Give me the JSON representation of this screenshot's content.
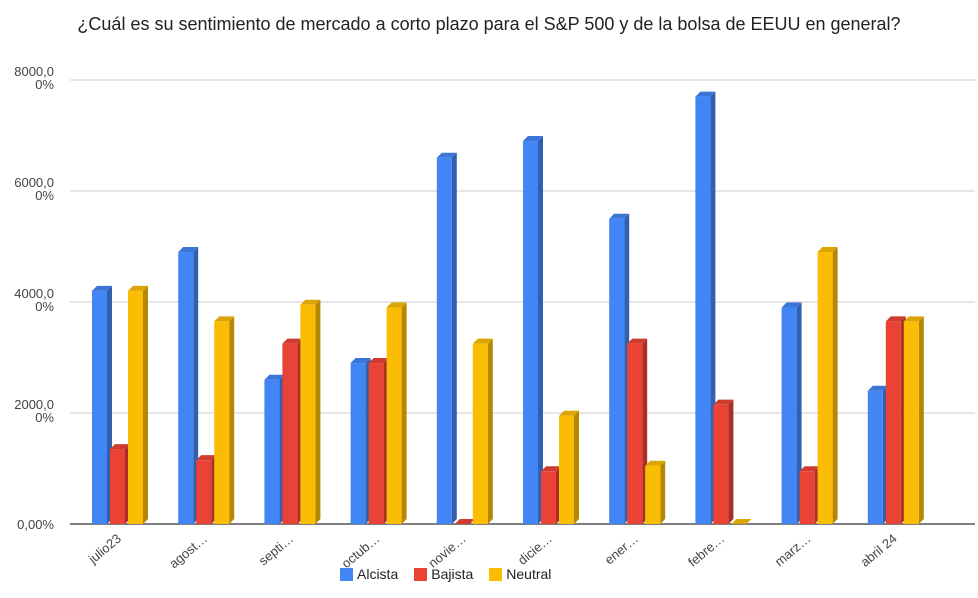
{
  "chart_data": {
    "type": "bar",
    "title": "¿Cuál es su sentimiento de mercado a corto plazo para el S&P 500 y de la bolsa de EEUU en general?",
    "categories": [
      "julio23",
      "agost…",
      "septi…",
      "octub…",
      "novie…",
      "dicie…",
      "ener…",
      "febre…",
      "marz…",
      "abril 24"
    ],
    "yticks": [
      {
        "v": 0,
        "l1": "0,00%",
        "l2": ""
      },
      {
        "v": 2000,
        "l1": "2000,0",
        "l2": "0%"
      },
      {
        "v": 4000,
        "l1": "4000,0",
        "l2": "0%"
      },
      {
        "v": 6000,
        "l1": "6000,0",
        "l2": "0%"
      },
      {
        "v": 8000,
        "l1": "8000,0",
        "l2": "0%"
      }
    ],
    "ylim": [
      0,
      8000
    ],
    "series": [
      {
        "name": "Alcista",
        "color": "#4285F4",
        "values": [
          4200,
          4900,
          2600,
          2900,
          6600,
          6900,
          5500,
          7700,
          3900,
          2400
        ]
      },
      {
        "name": "Bajista",
        "color": "#EA4335",
        "values": [
          1350,
          1150,
          3250,
          2900,
          0,
          950,
          3250,
          2150,
          950,
          3650
        ]
      },
      {
        "name": "Neutral",
        "color": "#FBBC04",
        "values": [
          4200,
          3650,
          3950,
          3900,
          3250,
          1950,
          1050,
          0,
          4900,
          3650
        ]
      }
    ],
    "legend_position": "bottom",
    "grid": true
  }
}
